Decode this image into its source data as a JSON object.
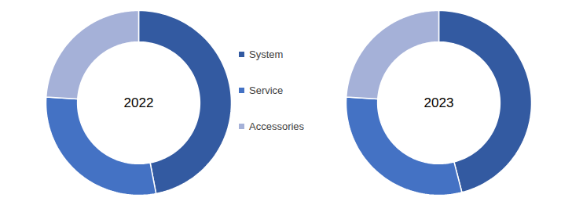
{
  "chart_data": [
    {
      "type": "pie",
      "title": "2022",
      "categories": [
        "System",
        "Service",
        "Accessories"
      ],
      "values": [
        47,
        29,
        24
      ],
      "colors": [
        "#335aa1",
        "#4472c4",
        "#a5b1d8"
      ]
    },
    {
      "type": "pie",
      "title": "2023",
      "categories": [
        "System",
        "Service",
        "Accessories"
      ],
      "values": [
        46,
        30,
        24
      ],
      "colors": [
        "#335aa1",
        "#4472c4",
        "#a5b1d8"
      ]
    }
  ]
}
